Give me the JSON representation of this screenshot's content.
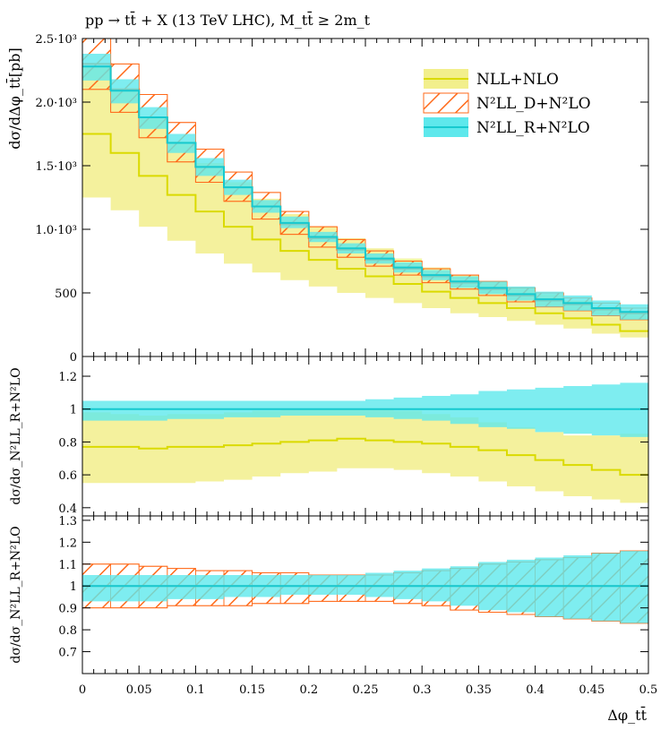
{
  "title": "pp → tt̄ + X (13 TeV LHC), M_tt̄ ≥ 2m_t",
  "colors": {
    "nll_fill": "#f2ef8c",
    "nll_line": "#dada00",
    "n2lld_line": "#ff6a1a",
    "n2llr_fill": "#5ee8ec",
    "n2llr_line": "#16c9cf",
    "overlap": "#99e6a8"
  },
  "chart_data": [
    {
      "type": "line",
      "panel": "main",
      "ylabel": "dσ/dΔφ_tt̄[pb]",
      "ylim": [
        0,
        2500
      ],
      "yticks": [
        {
          "v": 0,
          "label": "0"
        },
        {
          "v": 500,
          "label": "500"
        },
        {
          "v": 1000,
          "label": "1.0·10³"
        },
        {
          "v": 1500,
          "label": "1.5·10³"
        },
        {
          "v": 2000,
          "label": "2.0·10³"
        },
        {
          "v": 2500,
          "label": "2.5·10³"
        }
      ],
      "x": [
        0.0125,
        0.0375,
        0.0625,
        0.0875,
        0.1125,
        0.1375,
        0.1625,
        0.1875,
        0.2125,
        0.2375,
        0.2625,
        0.2875,
        0.3125,
        0.3375,
        0.3625,
        0.3875,
        0.4125,
        0.4375,
        0.4625,
        0.4875
      ],
      "legend": [
        {
          "name": "NLL+NLO",
          "style": "fill"
        },
        {
          "name": "N²LL_D+N²LO",
          "style": "hatch"
        },
        {
          "name": "N²LL_R+N²LO",
          "style": "fill"
        }
      ],
      "series": [
        {
          "name": "NLL+NLO",
          "central": [
            1750,
            1600,
            1420,
            1270,
            1140,
            1020,
            920,
            830,
            760,
            690,
            630,
            570,
            510,
            460,
            420,
            380,
            340,
            300,
            250,
            200
          ],
          "low": [
            1250,
            1150,
            1020,
            910,
            810,
            730,
            660,
            600,
            550,
            500,
            460,
            420,
            380,
            340,
            310,
            280,
            250,
            220,
            180,
            150
          ],
          "high": [
            2280,
            2100,
            1880,
            1690,
            1520,
            1370,
            1240,
            1120,
            1020,
            930,
            850,
            770,
            700,
            640,
            590,
            540,
            490,
            440,
            390,
            340
          ]
        },
        {
          "name": "N²LL_D+N²LO",
          "central": [
            2300,
            2100,
            1880,
            1680,
            1490,
            1330,
            1180,
            1040,
            930,
            840,
            760,
            690,
            630,
            580,
            530,
            480,
            440,
            410,
            370,
            340
          ],
          "low": [
            2100,
            1920,
            1720,
            1530,
            1370,
            1220,
            1080,
            960,
            860,
            780,
            710,
            640,
            580,
            530,
            480,
            430,
            390,
            360,
            320,
            290
          ],
          "high": [
            2500,
            2300,
            2060,
            1840,
            1630,
            1450,
            1290,
            1140,
            1020,
            920,
            830,
            750,
            690,
            640,
            590,
            540,
            500,
            460,
            420,
            380
          ]
        },
        {
          "name": "N²LL_R+N²LO",
          "central": [
            2280,
            2090,
            1880,
            1680,
            1490,
            1330,
            1180,
            1050,
            940,
            850,
            770,
            700,
            640,
            590,
            540,
            490,
            450,
            420,
            380,
            350
          ],
          "low": [
            2170,
            1990,
            1790,
            1600,
            1420,
            1270,
            1130,
            1010,
            900,
            810,
            730,
            660,
            600,
            540,
            490,
            440,
            390,
            360,
            320,
            290
          ],
          "high": [
            2380,
            2180,
            1960,
            1750,
            1560,
            1390,
            1230,
            1100,
            980,
            890,
            810,
            740,
            680,
            630,
            590,
            550,
            510,
            480,
            440,
            410
          ]
        }
      ]
    },
    {
      "type": "line",
      "panel": "ratio1",
      "ylabel": "dσ/dσ_N²LL_R+N²LO",
      "ylim": [
        0.35,
        1.32
      ],
      "yticks": [
        {
          "v": 0.4,
          "label": "0.4"
        },
        {
          "v": 0.6,
          "label": "0.6"
        },
        {
          "v": 0.8,
          "label": "0.8"
        },
        {
          "v": 1.0,
          "label": "1"
        },
        {
          "v": 1.2,
          "label": "1.2"
        }
      ],
      "series": [
        {
          "name": "NLL+NLO",
          "central": [
            0.77,
            0.77,
            0.76,
            0.77,
            0.77,
            0.78,
            0.79,
            0.8,
            0.81,
            0.82,
            0.81,
            0.8,
            0.79,
            0.77,
            0.75,
            0.72,
            0.69,
            0.66,
            0.63,
            0.6
          ],
          "low": [
            0.55,
            0.55,
            0.55,
            0.55,
            0.56,
            0.57,
            0.59,
            0.61,
            0.62,
            0.64,
            0.64,
            0.63,
            0.61,
            0.59,
            0.56,
            0.53,
            0.5,
            0.47,
            0.45,
            0.43
          ],
          "high": [
            0.98,
            0.97,
            0.96,
            0.97,
            0.97,
            0.98,
            0.99,
            1.0,
            1.0,
            1.0,
            1.0,
            0.99,
            0.97,
            0.95,
            0.92,
            0.89,
            0.86,
            0.84,
            0.84,
            0.85
          ]
        },
        {
          "name": "N²LL_R+N²LO",
          "central": [
            1,
            1,
            1,
            1,
            1,
            1,
            1,
            1,
            1,
            1,
            1,
            1,
            1,
            1,
            1,
            1,
            1,
            1,
            1,
            1
          ],
          "low": [
            0.93,
            0.93,
            0.93,
            0.94,
            0.94,
            0.95,
            0.95,
            0.96,
            0.96,
            0.96,
            0.95,
            0.94,
            0.93,
            0.91,
            0.89,
            0.88,
            0.86,
            0.85,
            0.84,
            0.83
          ],
          "high": [
            1.05,
            1.05,
            1.05,
            1.05,
            1.05,
            1.05,
            1.05,
            1.05,
            1.05,
            1.05,
            1.06,
            1.07,
            1.08,
            1.09,
            1.11,
            1.12,
            1.13,
            1.14,
            1.15,
            1.16
          ]
        }
      ]
    },
    {
      "type": "line",
      "panel": "ratio2",
      "ylabel": "dσ/dσ_N²LL_R+N²LO",
      "ylim": [
        0.6,
        1.32
      ],
      "yticks": [
        {
          "v": 0.7,
          "label": "0.7"
        },
        {
          "v": 0.8,
          "label": "0.8"
        },
        {
          "v": 0.9,
          "label": "0.9"
        },
        {
          "v": 1.0,
          "label": "1"
        },
        {
          "v": 1.1,
          "label": "1.1"
        },
        {
          "v": 1.2,
          "label": "1.2"
        },
        {
          "v": 1.3,
          "label": "1.3"
        }
      ],
      "series": [
        {
          "name": "N²LL_D+N²LO",
          "central": [
            1,
            1,
            1,
            1,
            1,
            1,
            1,
            1,
            1,
            1,
            1,
            1,
            1,
            1,
            1,
            1,
            1,
            1,
            1,
            1
          ],
          "low": [
            0.9,
            0.9,
            0.9,
            0.91,
            0.91,
            0.91,
            0.92,
            0.92,
            0.93,
            0.93,
            0.93,
            0.92,
            0.91,
            0.89,
            0.88,
            0.87,
            0.86,
            0.85,
            0.84,
            0.83
          ],
          "high": [
            1.1,
            1.1,
            1.09,
            1.08,
            1.07,
            1.07,
            1.06,
            1.06,
            1.05,
            1.05,
            1.05,
            1.06,
            1.07,
            1.08,
            1.1,
            1.11,
            1.12,
            1.13,
            1.15,
            1.16
          ]
        },
        {
          "name": "N²LL_R+N²LO",
          "central": [
            1,
            1,
            1,
            1,
            1,
            1,
            1,
            1,
            1,
            1,
            1,
            1,
            1,
            1,
            1,
            1,
            1,
            1,
            1,
            1
          ],
          "low": [
            0.93,
            0.93,
            0.93,
            0.94,
            0.94,
            0.95,
            0.95,
            0.96,
            0.96,
            0.96,
            0.95,
            0.94,
            0.93,
            0.91,
            0.89,
            0.88,
            0.86,
            0.85,
            0.84,
            0.83
          ],
          "high": [
            1.05,
            1.05,
            1.05,
            1.05,
            1.05,
            1.05,
            1.05,
            1.05,
            1.05,
            1.05,
            1.06,
            1.07,
            1.08,
            1.09,
            1.11,
            1.12,
            1.13,
            1.14,
            1.15,
            1.16
          ]
        }
      ]
    }
  ],
  "xaxis": {
    "label": "Δφ_tt̄",
    "xlim": [
      0,
      0.5
    ],
    "ticks": [
      {
        "v": 0,
        "label": "0"
      },
      {
        "v": 0.05,
        "label": "0.05"
      },
      {
        "v": 0.1,
        "label": "0.1"
      },
      {
        "v": 0.15,
        "label": "0.15"
      },
      {
        "v": 0.2,
        "label": "0.2"
      },
      {
        "v": 0.25,
        "label": "0.25"
      },
      {
        "v": 0.3,
        "label": "0.3"
      },
      {
        "v": 0.35,
        "label": "0.35"
      },
      {
        "v": 0.4,
        "label": "0.4"
      },
      {
        "v": 0.45,
        "label": "0.45"
      },
      {
        "v": 0.5,
        "label": "0.5"
      }
    ]
  }
}
